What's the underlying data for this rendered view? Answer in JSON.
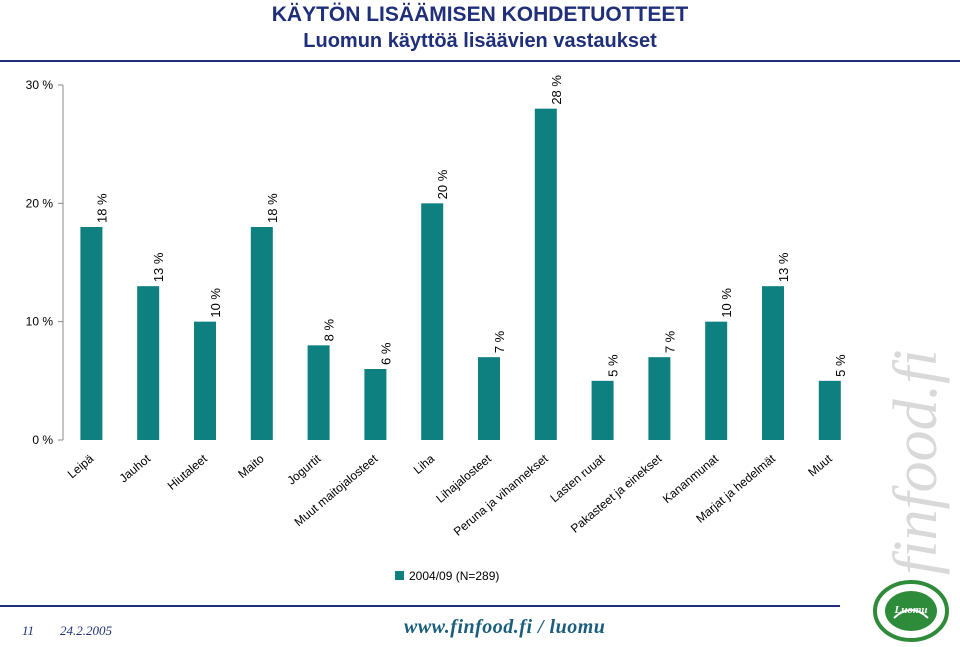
{
  "header": {
    "title": "KÄYTÖN LISÄÄMISEN KOHDETUOTTEET",
    "subtitle": "Luomun käyttöä lisäävien vastaukset"
  },
  "chart_data": {
    "type": "bar",
    "categories": [
      "Leipä",
      "Jauhot",
      "Hiutaleet",
      "Maito",
      "Jogurtit",
      "Muut maitojalosteet",
      "Liha",
      "Lihajalosteet",
      "Peruna ja vihannekset",
      "Lasten ruuat",
      "Pakasteet ja einekset",
      "Kananmunat",
      "Marjat ja hedelmät",
      "Muut"
    ],
    "series": [
      {
        "name": "2004/09 (N=289)",
        "values": [
          18,
          13,
          10,
          18,
          8,
          6,
          20,
          7,
          28,
          5,
          7,
          10,
          13,
          5
        ]
      }
    ],
    "data_labels": [
      "18 %",
      "13 %",
      "10 %",
      "18 %",
      "8 %",
      "6 %",
      "20 %",
      "7 %",
      "28 %",
      "5 %",
      "7 %",
      "10 %",
      "13 %",
      "5 %"
    ],
    "y_ticks": [
      "0 %",
      "10 %",
      "20 %",
      "30 %"
    ],
    "ylim": [
      0,
      30
    ],
    "grid": false,
    "legend_position": "bottom",
    "bar_color": "#0f8080"
  },
  "footer": {
    "page_number": "11",
    "date": "24.2.2005",
    "url": "www.finfood.fi / luomu"
  },
  "branding": {
    "watermark": "finfood.fi",
    "seal_text": "Luomu"
  },
  "colors": {
    "title": "#1f2f7a",
    "bars": "#0f8080"
  }
}
